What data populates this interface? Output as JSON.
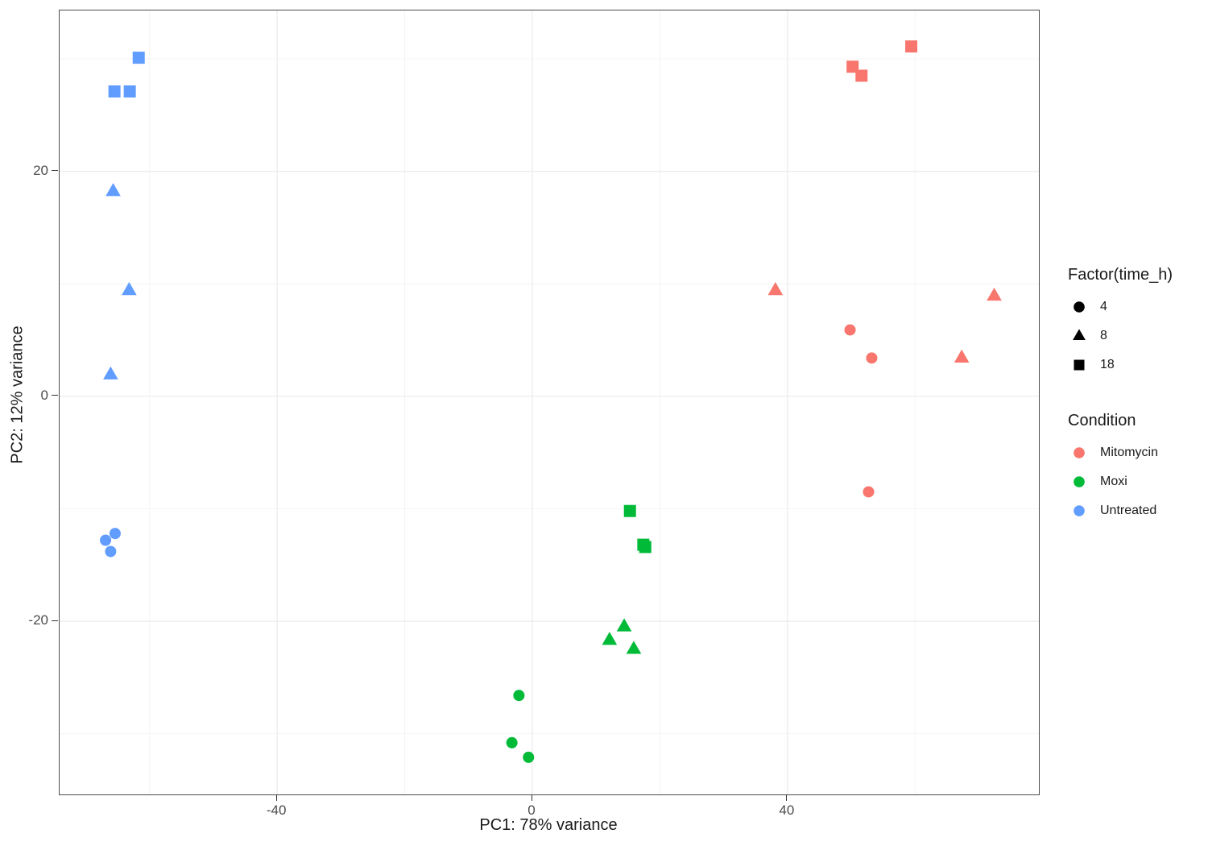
{
  "chart_data": {
    "type": "scatter",
    "title": "",
    "xlabel": "PC1: 78% variance",
    "ylabel": "PC2: 12% variance",
    "xlim": [
      -74.1,
      79.4
    ],
    "ylim": [
      -35.4,
      34.3
    ],
    "grid": true,
    "legend_position": "right",
    "x_ticks": [
      {
        "value": -40,
        "label": "-40"
      },
      {
        "value": 0,
        "label": "0"
      },
      {
        "value": 40,
        "label": "40"
      }
    ],
    "y_ticks": [
      {
        "value": 20,
        "label": "20"
      },
      {
        "value": 0,
        "label": "0"
      },
      {
        "value": -20,
        "label": "-20"
      }
    ],
    "x_minor_gridlines": [
      -60,
      -20,
      20,
      60
    ],
    "y_minor_gridlines": [
      30,
      10,
      -10,
      -30
    ],
    "shape_legend": {
      "title": "Factor(time_h)",
      "entries": [
        {
          "shape": "circle",
          "label": "4"
        },
        {
          "shape": "triangle",
          "label": "8"
        },
        {
          "shape": "square",
          "label": "18"
        }
      ]
    },
    "color_legend": {
      "title": "Condition",
      "entries": [
        {
          "label": "Mitomycin",
          "color": "#F8766D"
        },
        {
          "label": "Moxi",
          "color": "#00BA38"
        },
        {
          "label": "Untreated",
          "color": "#619CFF"
        }
      ]
    },
    "series": [
      {
        "condition": "Untreated",
        "time_h": 18,
        "shape": "square",
        "color": "#619CFF",
        "points": [
          [
            -61.7,
            30.1
          ],
          [
            -65.5,
            27.1
          ],
          [
            -63.1,
            27.1
          ]
        ]
      },
      {
        "condition": "Untreated",
        "time_h": 8,
        "shape": "triangle",
        "color": "#619CFF",
        "points": [
          [
            -65.7,
            18.2
          ],
          [
            -63.2,
            9.4
          ],
          [
            -66.1,
            1.9
          ]
        ]
      },
      {
        "condition": "Untreated",
        "time_h": 4,
        "shape": "circle",
        "color": "#619CFF",
        "points": [
          [
            -65.4,
            -12.2
          ],
          [
            -66.9,
            -12.8
          ],
          [
            -66.1,
            -13.8
          ]
        ]
      },
      {
        "condition": "Moxi",
        "time_h": 18,
        "shape": "square",
        "color": "#00BA38",
        "points": [
          [
            15.3,
            -10.2
          ],
          [
            17.4,
            -13.2
          ],
          [
            17.7,
            -13.4
          ]
        ]
      },
      {
        "condition": "Moxi",
        "time_h": 8,
        "shape": "triangle",
        "color": "#00BA38",
        "points": [
          [
            14.4,
            -20.5
          ],
          [
            12.1,
            -21.7
          ],
          [
            15.9,
            -22.5
          ]
        ]
      },
      {
        "condition": "Moxi",
        "time_h": 4,
        "shape": "circle",
        "color": "#00BA38",
        "points": [
          [
            -2.1,
            -26.6
          ],
          [
            -3.2,
            -30.8
          ],
          [
            -0.6,
            -32.1
          ]
        ]
      },
      {
        "condition": "Mitomycin",
        "time_h": 18,
        "shape": "square",
        "color": "#F8766D",
        "points": [
          [
            59.4,
            31.1
          ],
          [
            50.2,
            29.3
          ],
          [
            51.6,
            28.5
          ]
        ]
      },
      {
        "condition": "Mitomycin",
        "time_h": 8,
        "shape": "triangle",
        "color": "#F8766D",
        "points": [
          [
            38.1,
            9.4
          ],
          [
            72.4,
            8.9
          ],
          [
            67.3,
            3.4
          ]
        ]
      },
      {
        "condition": "Mitomycin",
        "time_h": 4,
        "shape": "circle",
        "color": "#F8766D",
        "points": [
          [
            49.8,
            5.9
          ],
          [
            53.2,
            3.4
          ],
          [
            52.7,
            -8.5
          ]
        ]
      }
    ]
  }
}
